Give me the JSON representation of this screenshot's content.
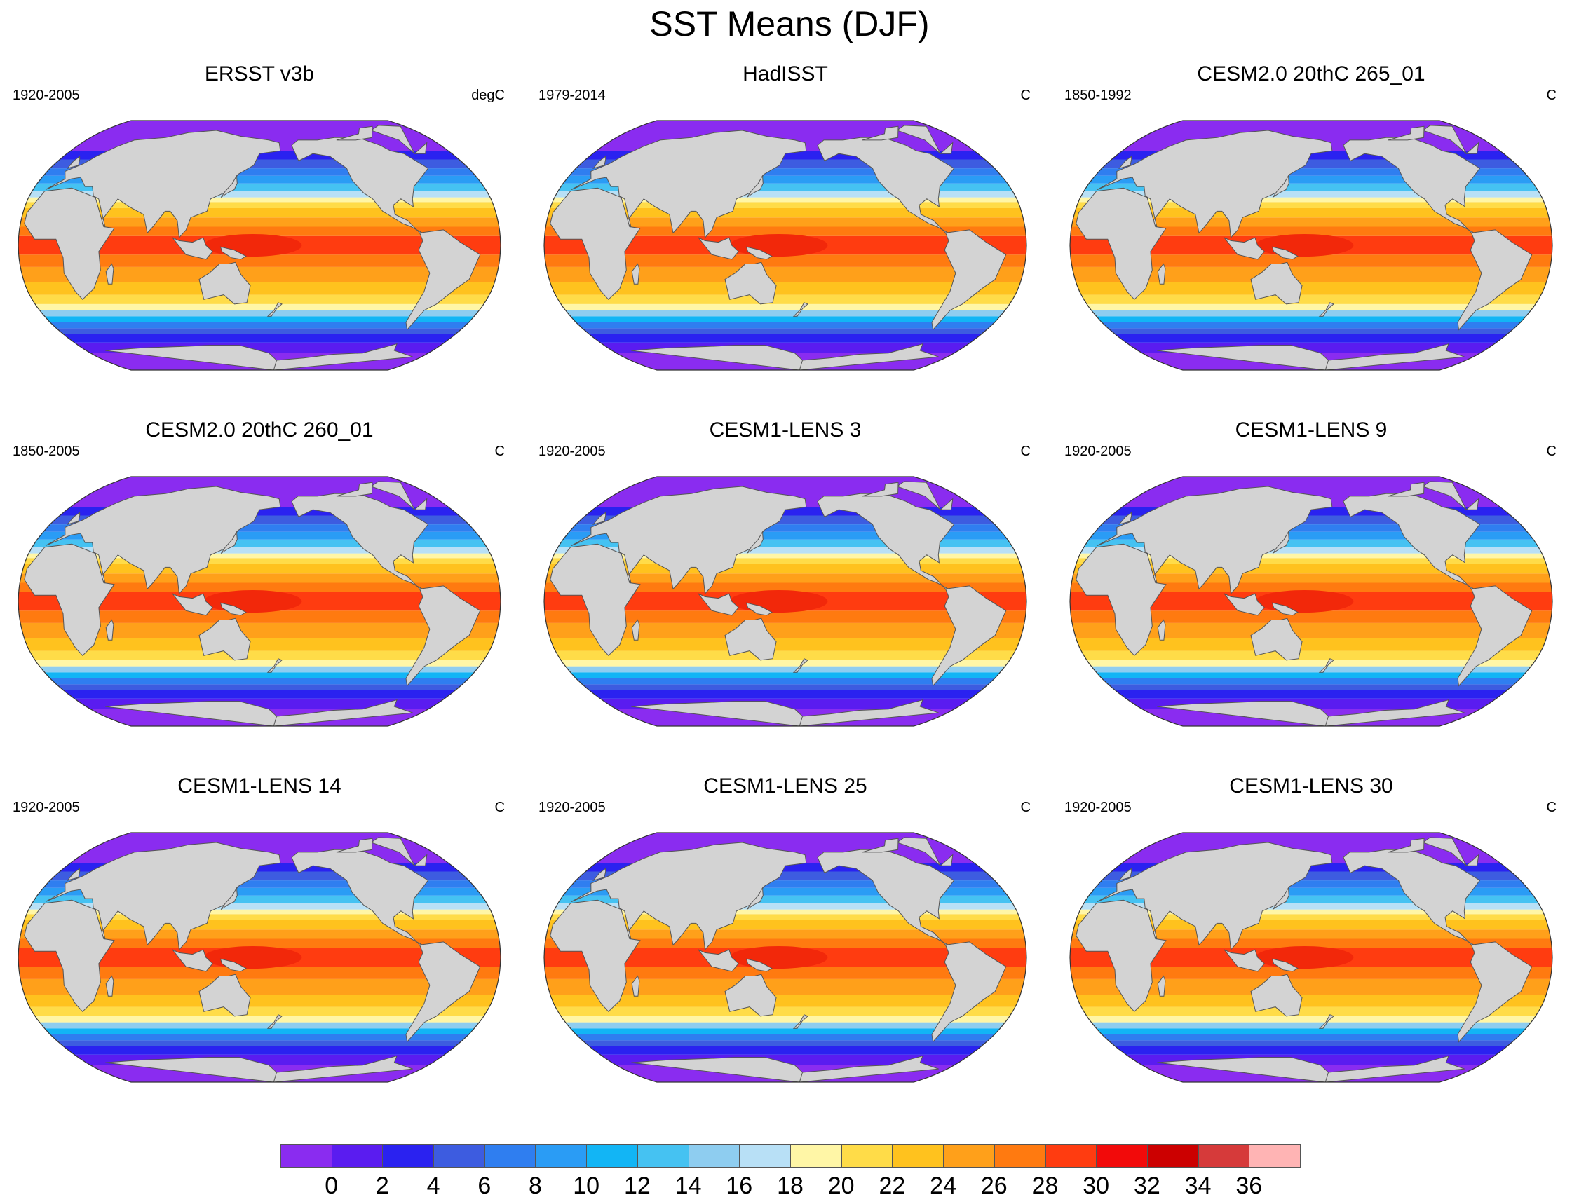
{
  "title": "SST Means (DJF)",
  "panels": [
    {
      "title": "ERSST v3b",
      "period": "1920-2005",
      "units": "degC"
    },
    {
      "title": "HadISST",
      "period": "1979-2014",
      "units": "C"
    },
    {
      "title": "CESM2.0 20thC 265_01",
      "period": "1850-1992",
      "units": "C"
    },
    {
      "title": "CESM2.0 20thC 260_01",
      "period": "1850-2005",
      "units": "C"
    },
    {
      "title": "CESM1-LENS 3",
      "period": "1920-2005",
      "units": "C"
    },
    {
      "title": "CESM1-LENS 9",
      "period": "1920-2005",
      "units": "C"
    },
    {
      "title": "CESM1-LENS 14",
      "period": "1920-2005",
      "units": "C"
    },
    {
      "title": "CESM1-LENS 25",
      "period": "1920-2005",
      "units": "C"
    },
    {
      "title": "CESM1-LENS 30",
      "period": "1920-2005",
      "units": "C"
    }
  ],
  "colorbar": {
    "colors": [
      "#8a2cf0",
      "#5a1cf0",
      "#2a22f0",
      "#3d5ce0",
      "#2f7ef0",
      "#2a9cf5",
      "#12b5f5",
      "#45c2f2",
      "#8ecdf0",
      "#b8e0f6",
      "#fff6a6",
      "#ffdc48",
      "#ffc21e",
      "#ffa01a",
      "#ff7a10",
      "#ff3c10",
      "#f20a0a",
      "#cc0000",
      "#d63a3a",
      "#ffb4b4"
    ],
    "labels": [
      "0",
      "2",
      "4",
      "6",
      "8",
      "10",
      "12",
      "14",
      "16",
      "18",
      "20",
      "22",
      "24",
      "26",
      "28",
      "30",
      "32",
      "34",
      "36"
    ]
  },
  "bands": [
    {
      "lat": -90,
      "color": "#8a2cf0"
    },
    {
      "lat": -72,
      "color": "#5a1cf0"
    },
    {
      "lat": -64,
      "color": "#2a22f0"
    },
    {
      "lat": -58,
      "color": "#3d5ce0"
    },
    {
      "lat": -54,
      "color": "#2f7ef0"
    },
    {
      "lat": -50,
      "color": "#12b5f5"
    },
    {
      "lat": -46,
      "color": "#8ecdf0"
    },
    {
      "lat": -42,
      "color": "#fff6a6"
    },
    {
      "lat": -38,
      "color": "#ffdc48"
    },
    {
      "lat": -32,
      "color": "#ffc21e"
    },
    {
      "lat": -24,
      "color": "#ffa01a"
    },
    {
      "lat": -14,
      "color": "#ff7a10"
    },
    {
      "lat": -6,
      "color": "#ff3c10"
    },
    {
      "lat": 6,
      "color": "#ff7a10"
    },
    {
      "lat": 12,
      "color": "#ffa01a"
    },
    {
      "lat": 18,
      "color": "#ffc21e"
    },
    {
      "lat": 24,
      "color": "#ffdc48"
    },
    {
      "lat": 28,
      "color": "#fff6a6"
    },
    {
      "lat": 31,
      "color": "#b8e0f6"
    },
    {
      "lat": 35,
      "color": "#45c2f2"
    },
    {
      "lat": 40,
      "color": "#2a9cf5"
    },
    {
      "lat": 45,
      "color": "#2f7ef0"
    },
    {
      "lat": 50,
      "color": "#3d5ce0"
    },
    {
      "lat": 56,
      "color": "#2a22f0"
    },
    {
      "lat": 62,
      "color": "#8a2cf0"
    },
    {
      "lat": 90,
      "color": "#8a2cf0"
    }
  ]
}
